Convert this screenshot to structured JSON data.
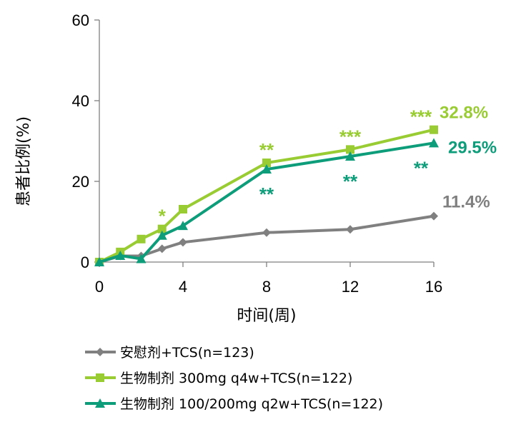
{
  "chart_data": {
    "type": "line",
    "xlabel": "时间(周)",
    "ylabel": "患者比例(%)",
    "xlim": [
      0,
      16
    ],
    "ylim": [
      0,
      60
    ],
    "xticks": [
      "0",
      "4",
      "8",
      "12",
      "16"
    ],
    "yticks": [
      "0",
      "20",
      "40",
      "60"
    ],
    "grid": false,
    "legend_position": "bottom",
    "series": [
      {
        "name": "安慰剂+TCS(n=123)",
        "color": "#808080",
        "marker": "diamond",
        "x": [
          0,
          1,
          2,
          3,
          4,
          8,
          12,
          16
        ],
        "y": [
          0,
          1.5,
          1.5,
          3.3,
          4.9,
          7.3,
          8.1,
          11.4
        ],
        "end_label": "11.4%",
        "annotations": []
      },
      {
        "name": "生物制剂 300mg q4w+TCS(n=122)",
        "color": "#99CC33",
        "marker": "square",
        "x": [
          0,
          1,
          2,
          3,
          4,
          8,
          12,
          16
        ],
        "y": [
          0,
          2.5,
          5.7,
          8.2,
          13.1,
          24.6,
          27.9,
          32.8
        ],
        "end_label": "32.8%",
        "annotations": [
          {
            "x": 3,
            "text": "*",
            "position": "above"
          },
          {
            "x": 8,
            "text": "**",
            "position": "above"
          },
          {
            "x": 12,
            "text": "***",
            "position": "above"
          },
          {
            "x": 16,
            "text": "***",
            "position": "above"
          }
        ]
      },
      {
        "name": "生物制剂 100/200mg q2w+TCS(n=122)",
        "color": "#0E9D7A",
        "marker": "triangle",
        "x": [
          0,
          1,
          2,
          3,
          4,
          8,
          12,
          16
        ],
        "y": [
          0,
          1.6,
          0.8,
          6.6,
          9.0,
          23.0,
          26.2,
          29.5
        ],
        "end_label": "29.5%",
        "annotations": [
          {
            "x": 8,
            "text": "**",
            "position": "below"
          },
          {
            "x": 12,
            "text": "**",
            "position": "below"
          },
          {
            "x": 16,
            "text": "**",
            "position": "below"
          }
        ]
      }
    ]
  }
}
